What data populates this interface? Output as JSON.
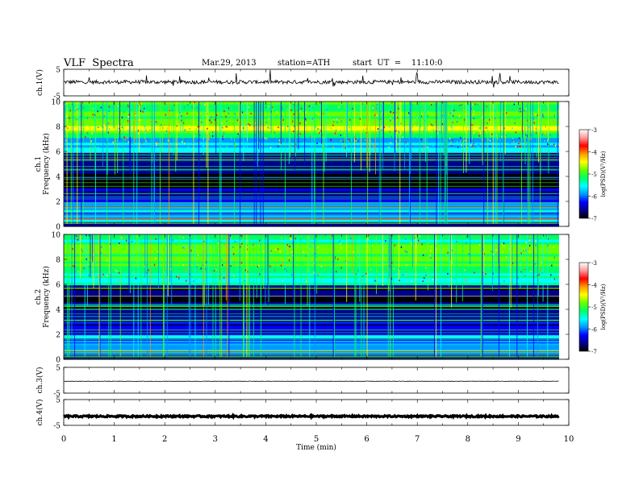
{
  "header": {
    "title": "VLF  Spectra",
    "date": "Mar.29, 2013",
    "station": "station=ATH",
    "start": "start  UT  =    11:10:0"
  },
  "colorbar": {
    "label": "log(PSD)(V²/Hz)",
    "ticks": [
      "-3",
      "-4",
      "-5",
      "-6",
      "-7"
    ],
    "colors": [
      "#ffffff",
      "#ff9999",
      "#ff0000",
      "#ff9900",
      "#ffff00",
      "#66ff00",
      "#00ff66",
      "#00ffff",
      "#0099ff",
      "#0000ff",
      "#00008b",
      "#000000"
    ]
  },
  "chart_data": [
    {
      "type": "line",
      "ylabel": "ch.1(V)",
      "y_ticks": [
        "5",
        "-5"
      ],
      "ylim": [
        -5,
        5
      ],
      "xlim": [
        0,
        10
      ]
    },
    {
      "type": "heatmap",
      "ylabel": "ch.1",
      "ylabel2": "Frequency  (kHz)",
      "y_ticks": [
        "10",
        "8",
        "6",
        "4",
        "2",
        "0"
      ],
      "ylim": [
        0,
        10
      ],
      "xlim": [
        0,
        10
      ],
      "zlim": [
        -7,
        -3
      ]
    },
    {
      "type": "heatmap",
      "ylabel": "ch.2",
      "ylabel2": "Frequency  (kHz)",
      "y_ticks": [
        "10",
        "8",
        "6",
        "4",
        "2",
        "0"
      ],
      "ylim": [
        0,
        10
      ],
      "xlim": [
        0,
        10
      ],
      "zlim": [
        -7,
        -3
      ]
    },
    {
      "type": "line",
      "ylabel": "ch.3(V)",
      "y_ticks": [
        "5",
        "-5"
      ],
      "ylim": [
        -5,
        5
      ],
      "xlim": [
        0,
        10
      ]
    },
    {
      "type": "line",
      "ylabel": "ch.4(V)",
      "y_ticks": [
        "5",
        "-5"
      ],
      "ylim": [
        -5,
        5
      ],
      "xlim": [
        0,
        10
      ]
    }
  ],
  "x_axis": {
    "label": "Time  (min)",
    "ticks": [
      "0",
      "1",
      "2",
      "3",
      "4",
      "5",
      "6",
      "7",
      "8",
      "9",
      "10"
    ]
  }
}
